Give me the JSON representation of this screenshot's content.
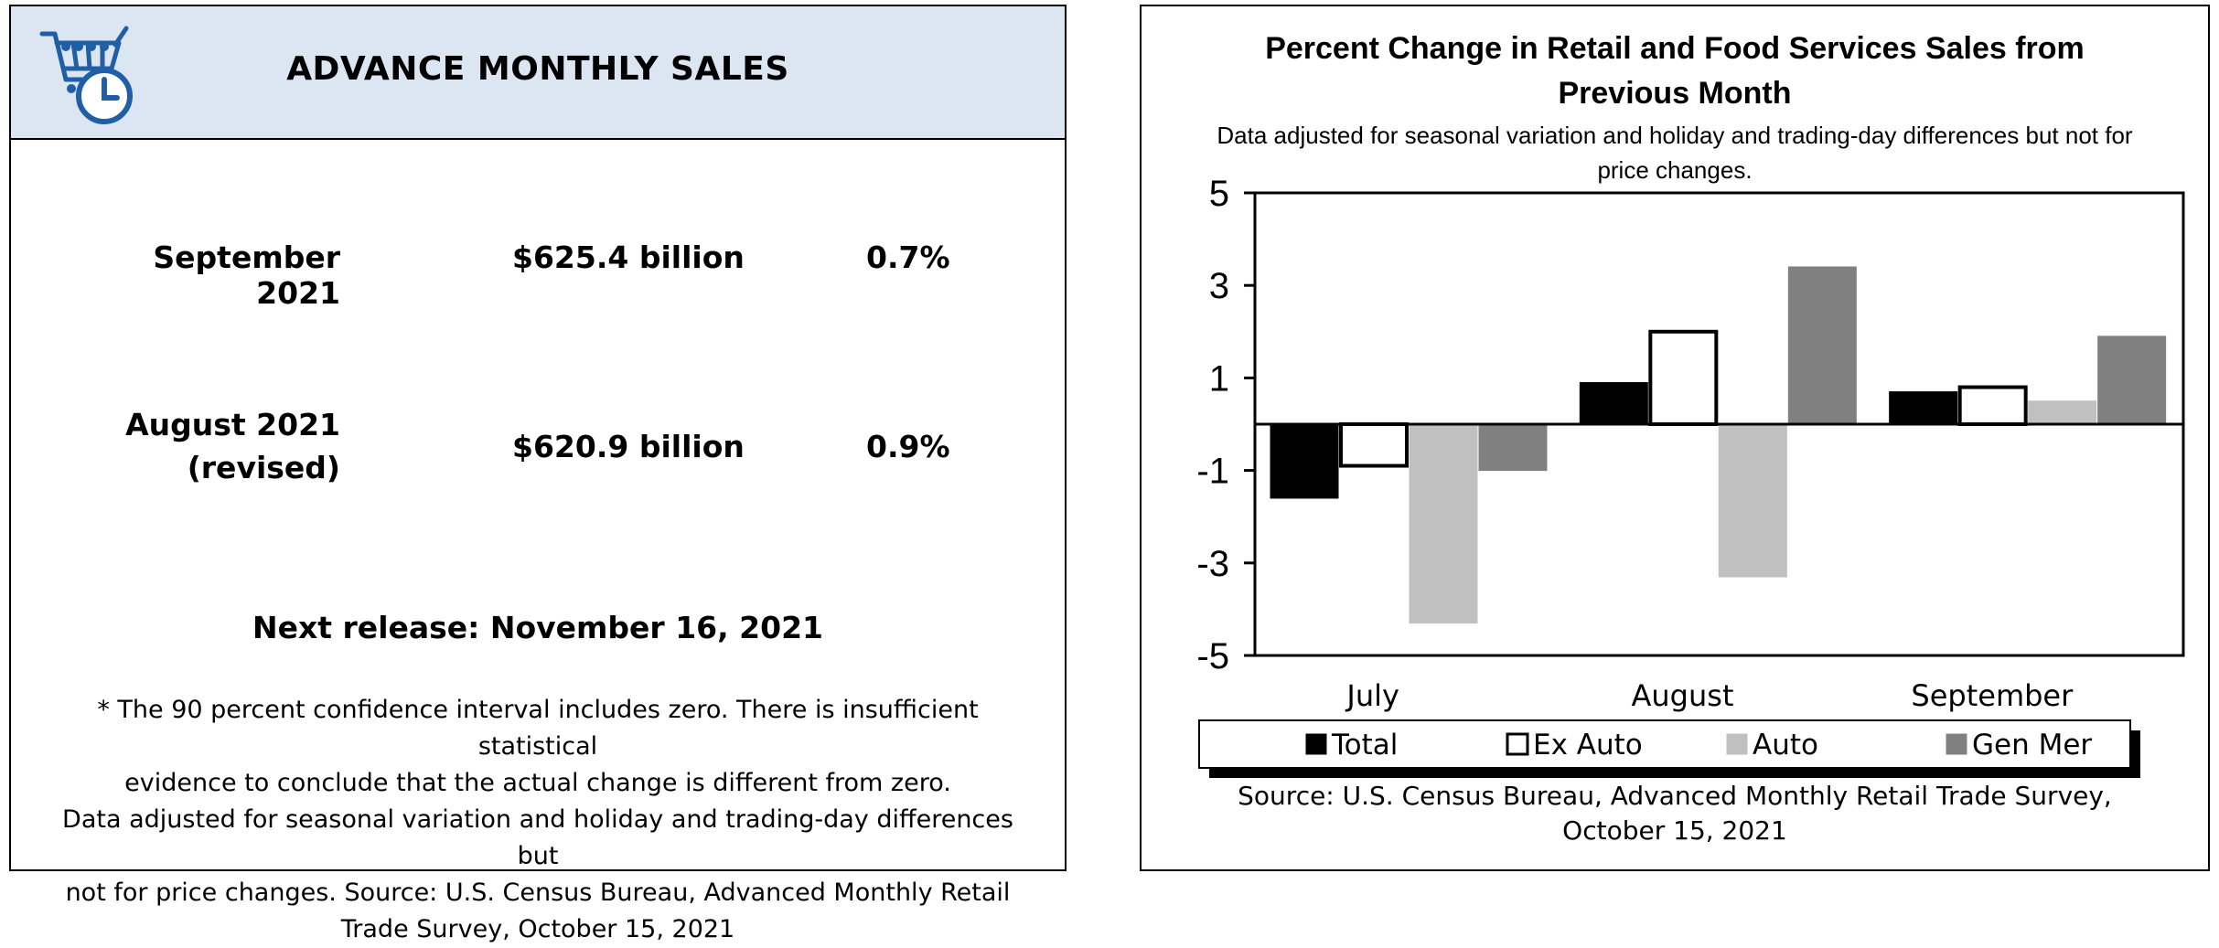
{
  "left": {
    "title": "ADVANCE MONTHLY SALES",
    "rows": [
      {
        "date": "September 2021",
        "date_note": "",
        "amount": "$625.4 billion",
        "percent": "0.7%"
      },
      {
        "date": "August 2021",
        "date_note": "(revised)",
        "amount": "$620.9 billion",
        "percent": "0.9%"
      }
    ],
    "next_release": "Next release: November 16, 2021",
    "footnote_lines": [
      "* The 90 percent confidence interval includes zero. There is insufficient statistical",
      "evidence to conclude that the actual change is different from zero.",
      "Data adjusted for seasonal variation and holiday and trading-day differences but",
      "not for price changes. Source: U.S. Census Bureau, Advanced Monthly Retail",
      "Trade Survey, October 15, 2021"
    ],
    "colors": {
      "header_bg": "#dce6f2",
      "logo": "#1f5fa6"
    },
    "logo_icon": "shopping-cart-clock-icon"
  },
  "chart_data": {
    "type": "bar",
    "title_lines": [
      "Percent Change in Retail and Food Services Sales from",
      "Previous Month"
    ],
    "subtitle_lines": [
      "Data adjusted for seasonal variation and holiday and trading-day differences but not for",
      "price changes."
    ],
    "categories": [
      "July",
      "August",
      "September"
    ],
    "series": [
      {
        "name": "Total",
        "values": [
          -1.6,
          0.9,
          0.7
        ],
        "fill": "#000000",
        "stroke": "#000000"
      },
      {
        "name": "Ex Auto",
        "values": [
          -0.9,
          2.0,
          0.8
        ],
        "fill": "#ffffff",
        "stroke": "#000000"
      },
      {
        "name": "Auto",
        "values": [
          -4.3,
          -3.3,
          0.5
        ],
        "fill": "#c0c0c0",
        "stroke": "#c0c0c0"
      },
      {
        "name": "Gen Mer",
        "values": [
          -1.0,
          3.4,
          1.9
        ],
        "fill": "#808080",
        "stroke": "#808080"
      }
    ],
    "yticks": [
      "5",
      "3",
      "1",
      "-1",
      "-3",
      "-5"
    ],
    "ylim": [
      -5,
      5
    ],
    "grid": false,
    "legend_position": "bottom",
    "source_lines": [
      "Source: U.S. Census Bureau, Advanced Monthly Retail Trade Survey,",
      "October 15, 2021"
    ]
  }
}
